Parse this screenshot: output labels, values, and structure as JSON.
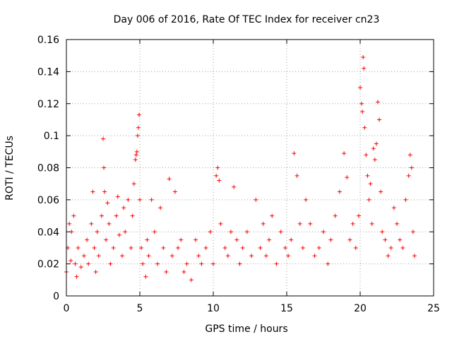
{
  "chart_data": {
    "type": "scatter",
    "title": "Day 006 of 2016, Rate Of TEC Index for receiver cn23",
    "xlabel": "GPS time / hours",
    "ylabel": "ROTI / TECUs",
    "xlim": [
      0,
      25
    ],
    "ylim": [
      0,
      0.16
    ],
    "grid": true,
    "marker": "+",
    "color": "#ff0000",
    "x_ticks": [
      {
        "value": 0,
        "label": "0"
      },
      {
        "value": 5,
        "label": "5"
      },
      {
        "value": 10,
        "label": "10"
      },
      {
        "value": 15,
        "label": "15"
      },
      {
        "value": 20,
        "label": "20"
      },
      {
        "value": 25,
        "label": "25"
      }
    ],
    "y_ticks": [
      {
        "value": 0,
        "label": "0"
      },
      {
        "value": 0.02,
        "label": "0.02"
      },
      {
        "value": 0.04,
        "label": "0.04"
      },
      {
        "value": 0.06,
        "label": "0.06"
      },
      {
        "value": 0.08,
        "label": "0.08"
      },
      {
        "value": 0.1,
        "label": "0.1"
      },
      {
        "value": 0.12,
        "label": "0.12"
      },
      {
        "value": 0.14,
        "label": "0.14"
      },
      {
        "value": 0.16,
        "label": "0.16"
      }
    ],
    "series": [
      {
        "name": "ROTI",
        "x": [
          0.0,
          0.1,
          0.2,
          0.3,
          0.35,
          0.5,
          0.6,
          0.7,
          0.8,
          1.0,
          1.2,
          1.4,
          1.5,
          1.7,
          1.8,
          1.9,
          2.0,
          2.1,
          2.2,
          2.4,
          2.5,
          2.55,
          2.6,
          2.7,
          2.8,
          2.9,
          3.0,
          3.2,
          3.4,
          3.5,
          3.6,
          3.8,
          3.9,
          4.0,
          4.2,
          4.4,
          4.5,
          4.6,
          4.7,
          4.75,
          4.8,
          4.85,
          4.9,
          4.95,
          5.0,
          5.1,
          5.2,
          5.4,
          5.5,
          5.6,
          5.8,
          6.0,
          6.2,
          6.4,
          6.6,
          6.8,
          7.0,
          7.2,
          7.4,
          7.6,
          7.8,
          8.0,
          8.2,
          8.5,
          8.8,
          9.0,
          9.2,
          9.5,
          9.8,
          10.0,
          10.2,
          10.3,
          10.4,
          10.5,
          10.8,
          11.0,
          11.2,
          11.4,
          11.6,
          11.8,
          12.0,
          12.3,
          12.6,
          12.9,
          13.2,
          13.4,
          13.6,
          13.8,
          14.0,
          14.3,
          14.6,
          14.9,
          15.1,
          15.3,
          15.5,
          15.7,
          15.9,
          16.1,
          16.3,
          16.6,
          16.9,
          17.2,
          17.5,
          17.8,
          18.0,
          18.3,
          18.6,
          18.9,
          19.1,
          19.3,
          19.5,
          19.7,
          19.9,
          20.0,
          20.1,
          20.15,
          20.2,
          20.25,
          20.3,
          20.4,
          20.5,
          20.6,
          20.7,
          20.8,
          20.9,
          21.0,
          21.1,
          21.2,
          21.3,
          21.4,
          21.5,
          21.7,
          21.9,
          22.1,
          22.3,
          22.5,
          22.7,
          22.9,
          23.1,
          23.3,
          23.4,
          23.5,
          23.6,
          23.7
        ],
        "y": [
          0.015,
          0.03,
          0.045,
          0.022,
          0.04,
          0.05,
          0.02,
          0.012,
          0.03,
          0.018,
          0.025,
          0.035,
          0.02,
          0.045,
          0.065,
          0.03,
          0.015,
          0.04,
          0.025,
          0.05,
          0.098,
          0.08,
          0.065,
          0.035,
          0.058,
          0.045,
          0.02,
          0.03,
          0.05,
          0.062,
          0.038,
          0.025,
          0.055,
          0.04,
          0.06,
          0.03,
          0.05,
          0.07,
          0.085,
          0.088,
          0.09,
          0.1,
          0.105,
          0.113,
          0.06,
          0.03,
          0.02,
          0.012,
          0.035,
          0.025,
          0.06,
          0.04,
          0.02,
          0.055,
          0.03,
          0.015,
          0.073,
          0.025,
          0.065,
          0.03,
          0.035,
          0.015,
          0.02,
          0.01,
          0.035,
          0.025,
          0.02,
          0.03,
          0.04,
          0.02,
          0.075,
          0.08,
          0.072,
          0.045,
          0.03,
          0.025,
          0.04,
          0.068,
          0.035,
          0.02,
          0.03,
          0.04,
          0.025,
          0.06,
          0.03,
          0.045,
          0.025,
          0.035,
          0.05,
          0.02,
          0.04,
          0.03,
          0.025,
          0.035,
          0.089,
          0.075,
          0.045,
          0.03,
          0.06,
          0.045,
          0.025,
          0.03,
          0.04,
          0.02,
          0.035,
          0.05,
          0.065,
          0.089,
          0.074,
          0.035,
          0.045,
          0.03,
          0.05,
          0.13,
          0.12,
          0.115,
          0.149,
          0.142,
          0.105,
          0.088,
          0.075,
          0.06,
          0.07,
          0.045,
          0.092,
          0.085,
          0.095,
          0.121,
          0.11,
          0.065,
          0.04,
          0.035,
          0.025,
          0.03,
          0.055,
          0.045,
          0.035,
          0.03,
          0.06,
          0.075,
          0.088,
          0.08,
          0.04,
          0.025
        ]
      }
    ]
  }
}
